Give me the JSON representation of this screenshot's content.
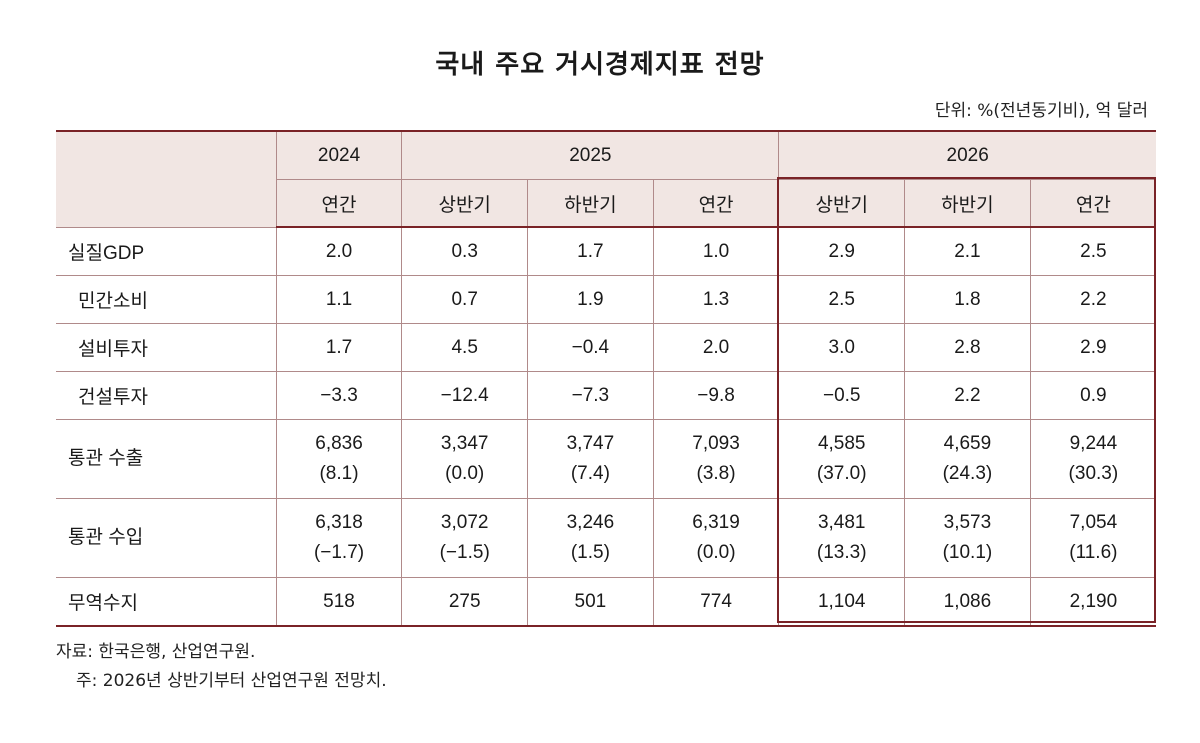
{
  "title": "국내 주요 거시경제지표 전망",
  "unit": "단위: %(전년동기비), 억 달러",
  "header": {
    "years": [
      "2024",
      "2025",
      "2026"
    ],
    "periods": [
      "연간",
      "상반기",
      "하반기",
      "연간",
      "상반기",
      "하반기",
      "연간"
    ]
  },
  "rows": [
    {
      "label": "실질GDP",
      "values": [
        "2.0",
        "0.3",
        "1.7",
        "1.0",
        "2.9",
        "2.1",
        "2.5"
      ]
    },
    {
      "label": "민간소비",
      "values": [
        "1.1",
        "0.7",
        "1.9",
        "1.3",
        "2.5",
        "1.8",
        "2.2"
      ]
    },
    {
      "label": "설비투자",
      "values": [
        "1.7",
        "4.5",
        "−0.4",
        "2.0",
        "3.0",
        "2.8",
        "2.9"
      ]
    },
    {
      "label": "건설투자",
      "values": [
        "−3.3",
        "−12.4",
        "−7.3",
        "−9.8",
        "−0.5",
        "2.2",
        "0.9"
      ]
    },
    {
      "label": "통관 수출",
      "values": [
        "6,836",
        "3,347",
        "3,747",
        "7,093",
        "4,585",
        "4,659",
        "9,244"
      ],
      "sub": [
        "(8.1)",
        "(0.0)",
        "(7.4)",
        "(3.8)",
        "(37.0)",
        "(24.3)",
        "(30.3)"
      ]
    },
    {
      "label": "통관 수입",
      "values": [
        "6,318",
        "3,072",
        "3,246",
        "6,319",
        "3,481",
        "3,573",
        "7,054"
      ],
      "sub": [
        "(−1.7)",
        "(−1.5)",
        "(1.5)",
        "(0.0)",
        "(13.3)",
        "(10.1)",
        "(11.6)"
      ]
    },
    {
      "label": "무역수지",
      "values": [
        "518",
        "275",
        "501",
        "774",
        "1,104",
        "1,086",
        "2,190"
      ]
    }
  ],
  "footnotes": {
    "source": "자료: 한국은행, 산업연구원.",
    "note": "주: 2026년 상반기부터 산업연구원 전망치."
  }
}
